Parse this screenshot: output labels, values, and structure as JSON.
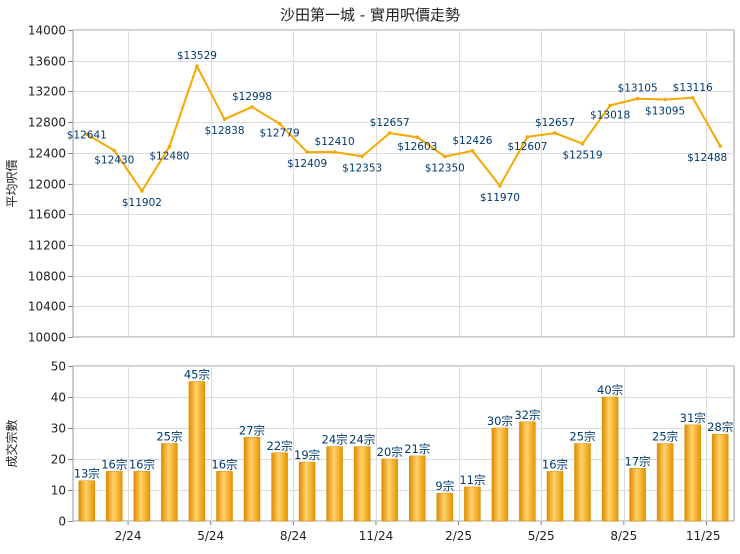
{
  "chart_title": "沙田第一城 - 實用呎價走勢",
  "chart_data": [
    {
      "type": "line",
      "ylabel": "平均呎價",
      "ylim": [
        10000,
        14000
      ],
      "yticks": [
        10000,
        10400,
        10800,
        11200,
        11600,
        12000,
        12400,
        12800,
        13200,
        13600,
        14000
      ],
      "grid": true,
      "series": [
        {
          "values": [
            12641,
            12430,
            11902,
            12480,
            13529,
            12838,
            12998,
            12779,
            12409,
            12410,
            12353,
            12657,
            12603,
            12350,
            12426,
            11970,
            12607,
            12657,
            12519,
            13018,
            13105,
            13095,
            13116,
            12488
          ],
          "labels": [
            "$12641",
            "$12430",
            "$11902",
            "$12480",
            "$13529",
            "$12838",
            "$12998",
            "$12779",
            "$12409",
            "$12410",
            "$12353",
            "$12657",
            "$12603",
            "$12350",
            "$12426",
            "$11970",
            "$12607",
            "$12657",
            "$12519",
            "$13018",
            "$13105",
            "$13095",
            "$13116",
            "$12488"
          ],
          "color": "#f5a800"
        }
      ]
    },
    {
      "type": "bar",
      "ylabel": "成交宗數",
      "ylim": [
        0,
        50
      ],
      "yticks": [
        0,
        10,
        20,
        30,
        40,
        50
      ],
      "grid": true,
      "x_tick_labels": [
        "2/24",
        "5/24",
        "8/24",
        "11/24",
        "2/25",
        "5/25",
        "8/25",
        "11/25"
      ],
      "series": [
        {
          "values": [
            13,
            16,
            16,
            25,
            45,
            16,
            27,
            22,
            19,
            24,
            24,
            20,
            21,
            9,
            11,
            30,
            32,
            16,
            25,
            40,
            17,
            25,
            31,
            28
          ],
          "labels": [
            "13宗",
            "16宗",
            "16宗",
            "25宗",
            "45宗",
            "16宗",
            "27宗",
            "22宗",
            "19宗",
            "24宗",
            "24宗",
            "20宗",
            "21宗",
            "9宗",
            "11宗",
            "30宗",
            "32宗",
            "16宗",
            "25宗",
            "40宗",
            "17宗",
            "25宗",
            "31宗",
            "28宗"
          ],
          "color": "#f2a30f"
        }
      ]
    }
  ]
}
